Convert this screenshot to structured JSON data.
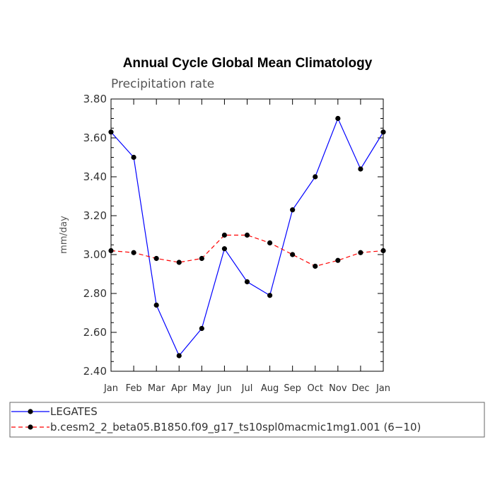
{
  "chart_data": {
    "type": "line",
    "title": "Annual Cycle Global Mean Climatology",
    "subtitle": "Precipitation rate",
    "xlabel": "",
    "ylabel": "mm/day",
    "categories": [
      "Jan",
      "Feb",
      "Mar",
      "Apr",
      "May",
      "Jun",
      "Jul",
      "Aug",
      "Sep",
      "Oct",
      "Nov",
      "Dec",
      "Jan"
    ],
    "ylim": [
      2.4,
      3.8
    ],
    "yticks": [
      "2.40",
      "2.60",
      "2.80",
      "3.00",
      "3.20",
      "3.40",
      "3.60",
      "3.80"
    ],
    "series": [
      {
        "name": "LEGATES",
        "color": "#0000ff",
        "dash": "solid",
        "values": [
          3.63,
          3.5,
          2.74,
          2.48,
          2.62,
          3.03,
          2.86,
          2.79,
          3.23,
          3.4,
          3.7,
          3.44,
          3.63
        ]
      },
      {
        "name": "b.cesm2_2_beta05.B1850.f09_g17_ts10spl0macmic1mg1.001 (6−10)",
        "color": "#ff0000",
        "dash": "dashed",
        "values": [
          3.02,
          3.01,
          2.98,
          2.96,
          2.98,
          3.1,
          3.1,
          3.06,
          3.0,
          2.94,
          2.97,
          3.01,
          3.02
        ]
      }
    ],
    "legend_position": "bottom"
  }
}
